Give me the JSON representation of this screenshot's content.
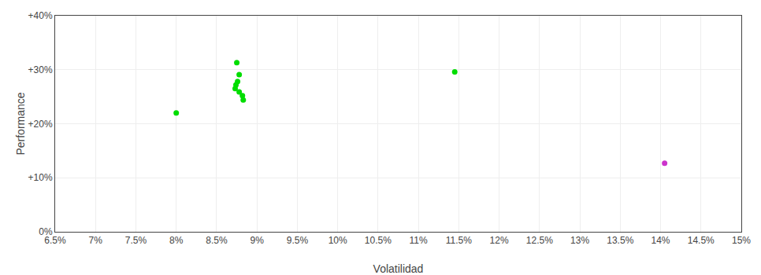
{
  "chart_data": {
    "type": "scatter",
    "xlabel": "Volatilidad",
    "ylabel": "Performance",
    "xlim": [
      0.065,
      0.15
    ],
    "ylim": [
      0.0,
      0.4
    ],
    "xticks": [
      {
        "value": 0.065,
        "label": "6.5%"
      },
      {
        "value": 0.07,
        "label": "7%"
      },
      {
        "value": 0.075,
        "label": "7.5%"
      },
      {
        "value": 0.08,
        "label": "8%"
      },
      {
        "value": 0.085,
        "label": "8.5%"
      },
      {
        "value": 0.09,
        "label": "9%"
      },
      {
        "value": 0.095,
        "label": "9.5%"
      },
      {
        "value": 0.1,
        "label": "10%"
      },
      {
        "value": 0.105,
        "label": "10.5%"
      },
      {
        "value": 0.11,
        "label": "11%"
      },
      {
        "value": 0.115,
        "label": "11.5%"
      },
      {
        "value": 0.12,
        "label": "12%"
      },
      {
        "value": 0.125,
        "label": "12.5%"
      },
      {
        "value": 0.13,
        "label": "13%"
      },
      {
        "value": 0.135,
        "label": "13.5%"
      },
      {
        "value": 0.14,
        "label": "14%"
      },
      {
        "value": 0.145,
        "label": "14.5%"
      },
      {
        "value": 0.15,
        "label": "15%"
      }
    ],
    "yticks": [
      {
        "value": 0.0,
        "label": "0%"
      },
      {
        "value": 0.1,
        "label": "+10%"
      },
      {
        "value": 0.2,
        "label": "+20%"
      },
      {
        "value": 0.3,
        "label": "+30%"
      },
      {
        "value": 0.4,
        "label": "+40%"
      }
    ],
    "grid": true,
    "series": [
      {
        "color": "#00dd00",
        "x": [
          0.08,
          0.0875,
          0.0878,
          0.0876,
          0.0874,
          0.0873,
          0.0878,
          0.0882,
          0.0883,
          0.1145
        ],
        "values": [
          0.22,
          0.313,
          0.291,
          0.278,
          0.272,
          0.265,
          0.259,
          0.252,
          0.244,
          0.296
        ]
      },
      {
        "color": "#cc33cc",
        "x": [
          0.1405
        ],
        "values": [
          0.127
        ]
      }
    ]
  }
}
